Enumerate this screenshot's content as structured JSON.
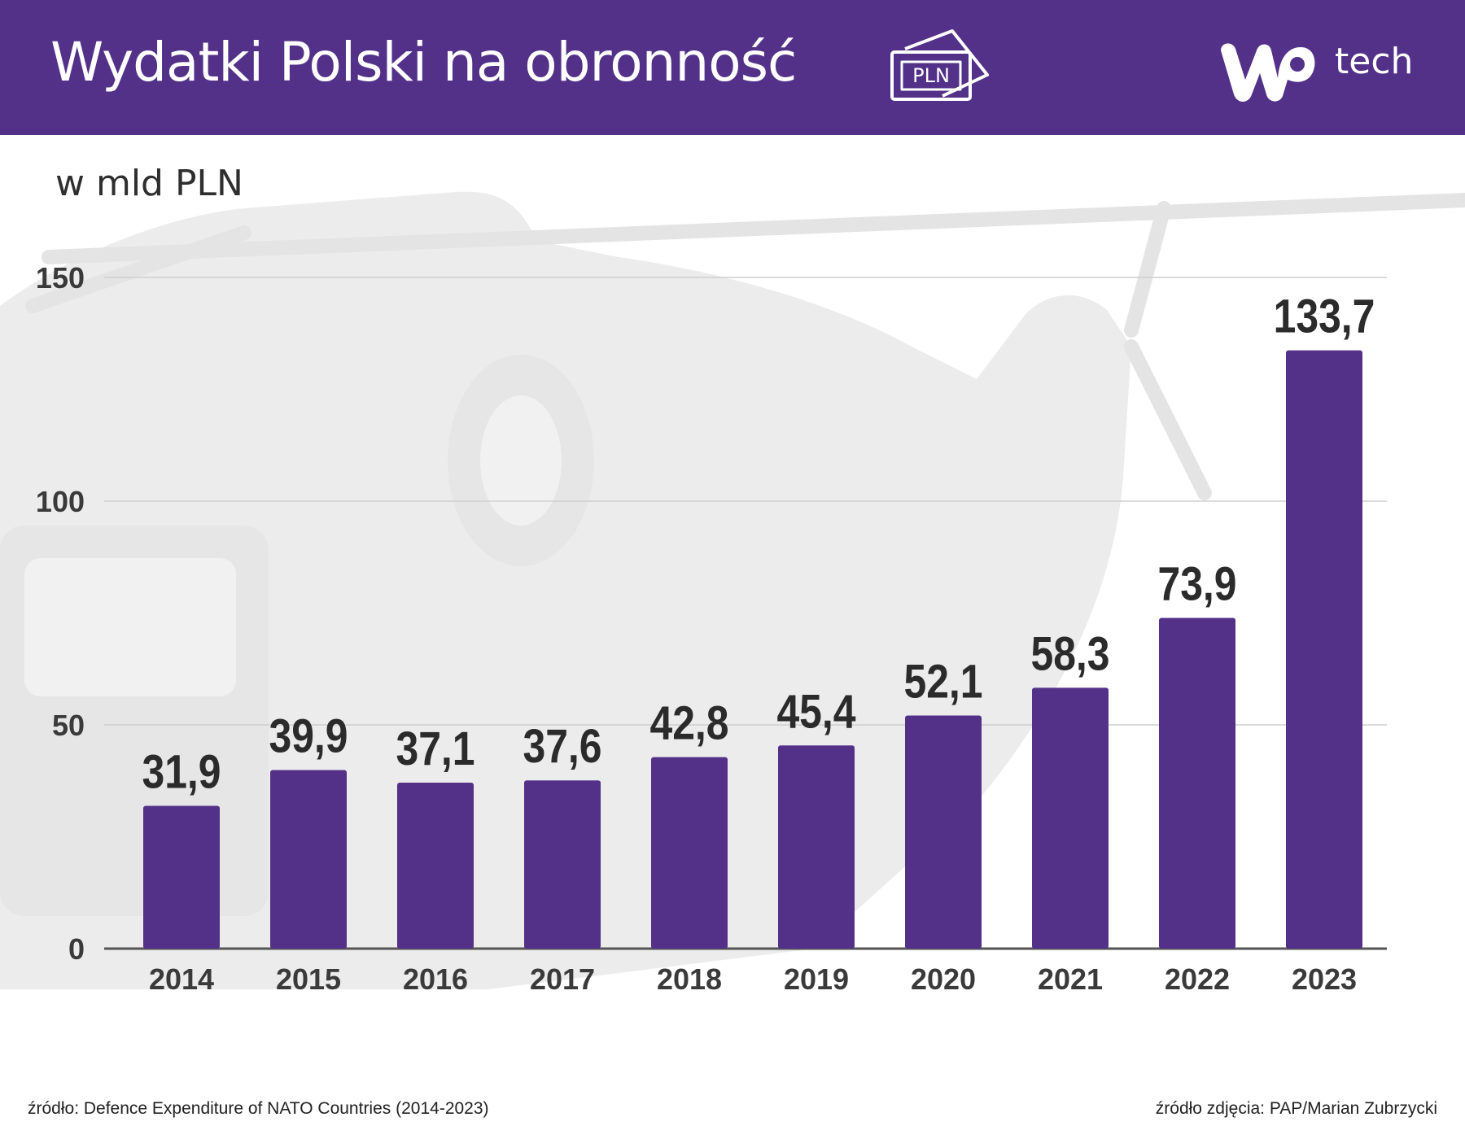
{
  "header": {
    "title": "Wydatki Polski na obronność",
    "currency_icon_text": "PLN",
    "logo_text": "tech",
    "logo_icon": "wp-logo-icon",
    "currency_icon": "banknote-icon",
    "background_color": "#533189"
  },
  "chart_data": {
    "type": "bar",
    "title": "Wydatki Polski na obronność",
    "ylabel": "w mld PLN",
    "xlabel": "",
    "categories": [
      "2014",
      "2015",
      "2016",
      "2017",
      "2018",
      "2019",
      "2020",
      "2021",
      "2022",
      "2023"
    ],
    "values": [
      31.9,
      39.9,
      37.1,
      37.6,
      42.8,
      45.4,
      52.1,
      58.3,
      73.9,
      133.7
    ],
    "value_labels": [
      "31,9",
      "39,9",
      "37,1",
      "37,6",
      "42,8",
      "45,4",
      "52,1",
      "58,3",
      "73,9",
      "133,7"
    ],
    "ylim": [
      0,
      150
    ],
    "yticks": [
      0,
      50,
      100,
      150
    ],
    "grid": true,
    "legend": "none",
    "bar_color": "#533189"
  },
  "footer": {
    "source": "źródło: Defence Expenditure of NATO Countries (2014-2023)",
    "photo_credit": "źródło zdjęcia: PAP/Marian Zubrzycki"
  }
}
